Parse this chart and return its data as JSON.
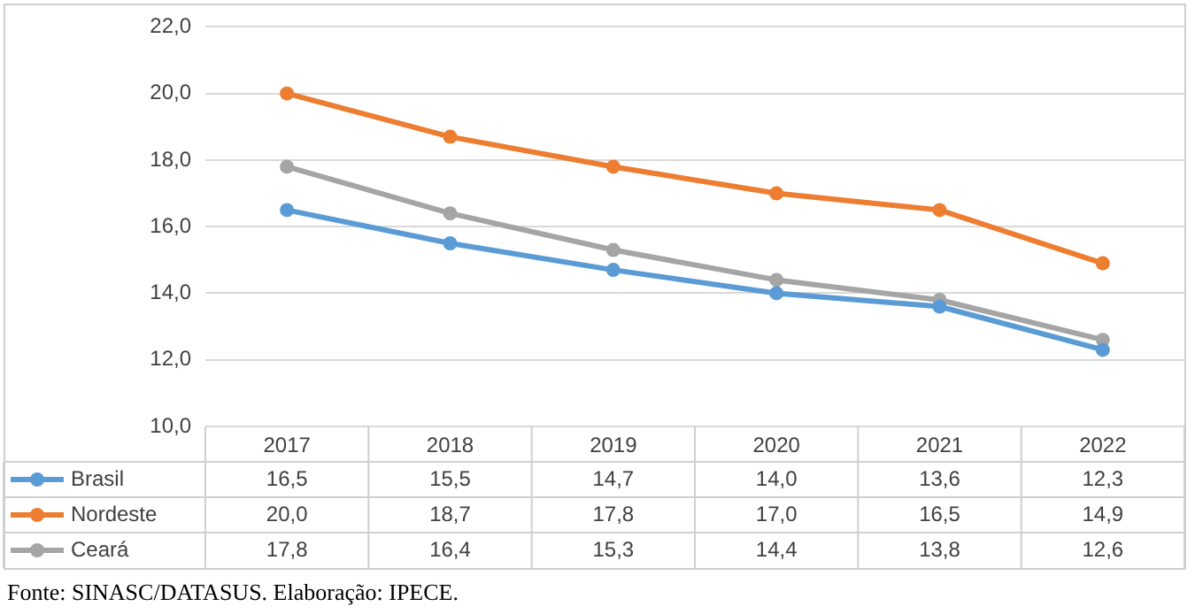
{
  "chart_data": {
    "type": "line",
    "categories": [
      "2017",
      "2018",
      "2019",
      "2020",
      "2021",
      "2022"
    ],
    "series": [
      {
        "name": "Brasil",
        "color": "#5b9bd5",
        "values": [
          16.5,
          15.5,
          14.7,
          14.0,
          13.6,
          12.3
        ],
        "value_labels": [
          "16,5",
          "15,5",
          "14,7",
          "14,0",
          "13,6",
          "12,3"
        ]
      },
      {
        "name": "Nordeste",
        "color": "#ed7d31",
        "values": [
          20.0,
          18.7,
          17.8,
          17.0,
          16.5,
          14.9
        ],
        "value_labels": [
          "20,0",
          "18,7",
          "17,8",
          "17,0",
          "16,5",
          "14,9"
        ]
      },
      {
        "name": "Ceará",
        "color": "#a5a5a5",
        "values": [
          17.8,
          16.4,
          15.3,
          14.4,
          13.8,
          12.6
        ],
        "value_labels": [
          "17,8",
          "16,4",
          "15,3",
          "14,4",
          "13,8",
          "12,6"
        ]
      }
    ],
    "ylim": [
      10,
      22
    ],
    "yticks": [
      {
        "value": 10,
        "label": "10,0"
      },
      {
        "value": 12,
        "label": "12,0"
      },
      {
        "value": 14,
        "label": "14,0"
      },
      {
        "value": 16,
        "label": "16,0"
      },
      {
        "value": 18,
        "label": "18,0"
      },
      {
        "value": 20,
        "label": "20,0"
      },
      {
        "value": 22,
        "label": "22,0"
      }
    ],
    "grid": "y",
    "legend": "bottom left",
    "marker": "circle",
    "line_style": "solid",
    "annotations": [
      "Fonte: SINASC/DATASUS. Elaboração: IPECE."
    ]
  }
}
